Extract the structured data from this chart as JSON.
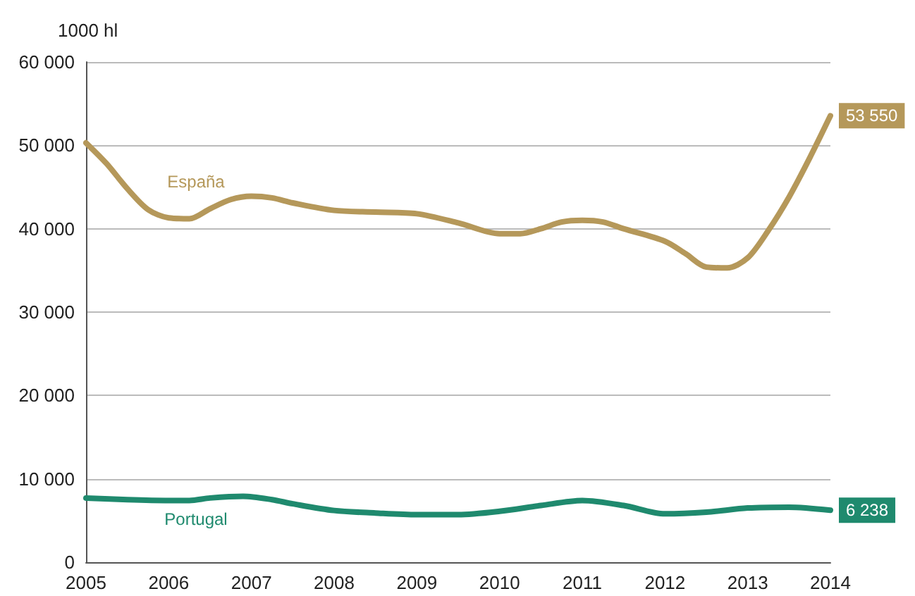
{
  "chart_data": {
    "type": "line",
    "ylabel": "1000 hl",
    "xlim": [
      2005,
      2014
    ],
    "xticks": [
      2005,
      2006,
      2007,
      2008,
      2009,
      2010,
      2011,
      2012,
      2013,
      2014
    ],
    "ylim": [
      0,
      60000
    ],
    "yticks": [
      0,
      {
        "value": 10000,
        "label": "10 000"
      },
      {
        "value": 20000,
        "label": "20 000"
      },
      {
        "value": 30000,
        "label": "30 000"
      },
      {
        "value": 40000,
        "label": "40 000"
      },
      {
        "value": 50000,
        "label": "50 000"
      },
      {
        "value": 60000,
        "label": "60 000"
      }
    ],
    "grid": "y",
    "marker": "none",
    "line_style": "solid",
    "series": [
      {
        "name": "España",
        "color": "#b5985a",
        "x": [
          2005,
          2005.25,
          2005.5,
          2005.75,
          2006,
          2006.25,
          2006.5,
          2006.75,
          2007,
          2007.25,
          2007.5,
          2008,
          2008.5,
          2009,
          2009.5,
          2010,
          2010.25,
          2010.5,
          2010.75,
          2011,
          2011.25,
          2011.5,
          2012,
          2012.25,
          2012.5,
          2012.75,
          2013,
          2013.25,
          2013.5,
          2013.75,
          2014
        ],
        "values": [
          50300,
          47800,
          44800,
          42300,
          41300,
          41200,
          42400,
          43500,
          43900,
          43700,
          43100,
          42200,
          42000,
          41800,
          40700,
          39400,
          39400,
          40000,
          40800,
          41000,
          40800,
          40000,
          38500,
          37000,
          35400,
          35300,
          36500,
          39800,
          43800,
          48500,
          53550
        ],
        "value_labels": [
          null,
          null,
          null,
          null,
          null,
          null,
          null,
          null,
          null,
          null,
          null,
          null,
          null,
          null,
          null,
          null,
          null,
          null,
          null,
          null,
          null,
          null,
          null,
          null,
          null,
          null,
          null,
          null,
          null,
          null,
          "53 550"
        ]
      },
      {
        "name": "Portugal",
        "color": "#1f8a6e",
        "x": [
          2005,
          2005.5,
          2006,
          2006.25,
          2006.5,
          2006.9,
          2007.25,
          2007.5,
          2008,
          2008.5,
          2009,
          2009.5,
          2010,
          2010.5,
          2011,
          2011.5,
          2012,
          2012.5,
          2013,
          2013.5,
          2014
        ],
        "values": [
          7700,
          7500,
          7400,
          7400,
          7700,
          7900,
          7500,
          7000,
          6200,
          5900,
          5700,
          5700,
          6100,
          6800,
          7400,
          6800,
          5800,
          6000,
          6500,
          6600,
          6238
        ],
        "value_labels": [
          null,
          null,
          null,
          null,
          null,
          null,
          null,
          null,
          null,
          null,
          null,
          null,
          null,
          null,
          null,
          null,
          null,
          null,
          null,
          null,
          "6 238"
        ]
      }
    ]
  }
}
